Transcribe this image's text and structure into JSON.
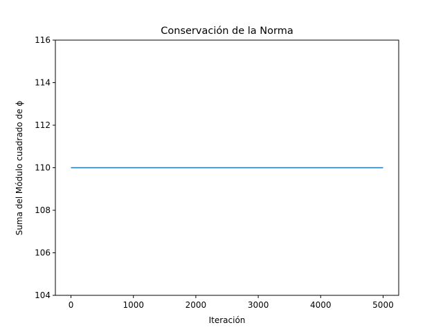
{
  "chart_data": {
    "type": "line",
    "title": "Conservación de la Norma",
    "xlabel": "Iteración",
    "ylabel": "Suma del Módulo cuadrado de ϕ",
    "xlim": [
      -250,
      5250
    ],
    "ylim": [
      104,
      116
    ],
    "xticks": [
      0,
      1000,
      2000,
      3000,
      4000,
      5000
    ],
    "xtick_labels": [
      "0",
      "1000",
      "2000",
      "3000",
      "4000",
      "5000"
    ],
    "yticks": [
      104,
      106,
      108,
      110,
      112,
      114,
      116
    ],
    "ytick_labels": [
      "104",
      "106",
      "108",
      "110",
      "112",
      "114",
      "116"
    ],
    "grid": false,
    "legend": "none",
    "series": [
      {
        "color": "#1f77b4",
        "x": [
          0,
          5000
        ],
        "y": [
          110,
          110
        ]
      }
    ]
  }
}
